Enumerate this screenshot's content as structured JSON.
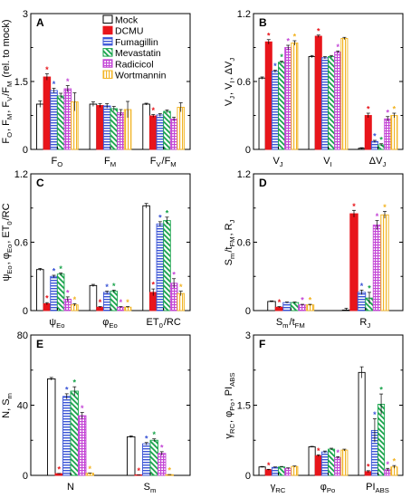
{
  "colors": {
    "Mock": "#000000",
    "DCMU": "#e8151b",
    "Fumagillin": "#3a54d6",
    "Mevastatin": "#17a34a",
    "Radicicol": "#c447d6",
    "Wortmannin": "#f2b424"
  },
  "legend": [
    "Mock",
    "DCMU",
    "Fumagillin",
    "Mevastatin",
    "Radicicol",
    "Wortmannin"
  ],
  "chart_data": [
    {
      "type": "bar",
      "panel_label": "A",
      "ylabel": "FO, FM, FV/FM (rel. to mock)",
      "ylim": [
        0,
        3
      ],
      "yticks": [
        "0",
        "1.5",
        "3"
      ],
      "categories": [
        "FO",
        "FM",
        "FV/FM"
      ],
      "series": [
        {
          "name": "Mock",
          "values": [
            1.0,
            1.0,
            1.0
          ],
          "err": [
            0.07,
            0.05,
            0.02
          ]
        },
        {
          "name": "DCMU",
          "values": [
            1.6,
            0.97,
            0.74
          ],
          "err": [
            0.07,
            0.04,
            0.03
          ],
          "sig": [
            true,
            false,
            true
          ]
        },
        {
          "name": "Fumagillin",
          "values": [
            1.3,
            0.96,
            0.76
          ],
          "err": [
            0.05,
            0.05,
            0.03
          ],
          "sig": [
            true,
            false,
            false
          ]
        },
        {
          "name": "Mevastatin",
          "values": [
            1.18,
            0.9,
            0.84
          ],
          "err": [
            0.06,
            0.05,
            0.03
          ]
        },
        {
          "name": "Radicicol",
          "values": [
            1.34,
            0.81,
            0.67
          ],
          "err": [
            0.07,
            0.07,
            0.04
          ],
          "sig": [
            true,
            false,
            false
          ]
        },
        {
          "name": "Wortmannin",
          "values": [
            1.05,
            0.88,
            0.93
          ],
          "err": [
            0.2,
            0.18,
            0.1
          ]
        }
      ]
    },
    {
      "type": "bar",
      "panel_label": "B",
      "ylabel": "VJ, VI, ΔVJ",
      "ylim": [
        0,
        1.2
      ],
      "yticks": [
        "0",
        "0.6",
        "1.2"
      ],
      "categories": [
        "VJ",
        "VI",
        "ΔVJ"
      ],
      "series": [
        {
          "name": "Mock",
          "values": [
            0.63,
            0.82,
            0.01
          ],
          "err": [
            0.01,
            0.01,
            0.005
          ]
        },
        {
          "name": "DCMU",
          "values": [
            0.95,
            1.0,
            0.3
          ],
          "err": [
            0.02,
            0.01,
            0.02
          ],
          "sig": [
            true,
            true,
            true
          ]
        },
        {
          "name": "Fumagillin",
          "values": [
            0.69,
            0.81,
            0.07
          ],
          "err": [
            0.01,
            0.01,
            0.01
          ],
          "sig": [
            true,
            false,
            true
          ]
        },
        {
          "name": "Mevastatin",
          "values": [
            0.77,
            0.82,
            0.04
          ],
          "err": [
            0.01,
            0.01,
            0.01
          ],
          "sig": [
            true,
            false,
            true
          ]
        },
        {
          "name": "Radicicol",
          "values": [
            0.9,
            0.86,
            0.27
          ],
          "err": [
            0.02,
            0.01,
            0.02
          ],
          "sig": [
            true,
            true,
            true
          ]
        },
        {
          "name": "Wortmannin",
          "values": [
            0.94,
            0.98,
            0.3
          ],
          "err": [
            0.02,
            0.01,
            0.02
          ],
          "sig": [
            true,
            false,
            true
          ]
        }
      ]
    },
    {
      "type": "bar",
      "panel_label": "C",
      "ylabel": "ψEo, φEo, ET0/RC",
      "ylim": [
        0,
        1.2
      ],
      "yticks": [
        "0",
        "0.6",
        "1.2"
      ],
      "categories": [
        "ψEo",
        "φEo",
        "ET0/RC"
      ],
      "series": [
        {
          "name": "Mock",
          "values": [
            0.36,
            0.22,
            0.92
          ],
          "err": [
            0.01,
            0.01,
            0.02
          ]
        },
        {
          "name": "DCMU",
          "values": [
            0.06,
            0.03,
            0.16
          ],
          "err": [
            0.01,
            0.005,
            0.03
          ],
          "sig": [
            true,
            true,
            true
          ]
        },
        {
          "name": "Fumagillin",
          "values": [
            0.3,
            0.16,
            0.76
          ],
          "err": [
            0.01,
            0.01,
            0.02
          ],
          "sig": [
            true,
            true,
            true
          ]
        },
        {
          "name": "Mevastatin",
          "values": [
            0.32,
            0.17,
            0.79
          ],
          "err": [
            0.01,
            0.01,
            0.03
          ],
          "sig": [
            true,
            true,
            true
          ]
        },
        {
          "name": "Radicicol",
          "values": [
            0.1,
            0.03,
            0.24
          ],
          "err": [
            0.02,
            0.005,
            0.04
          ],
          "sig": [
            true,
            true,
            true
          ]
        },
        {
          "name": "Wortmannin",
          "values": [
            0.05,
            0.03,
            0.15
          ],
          "err": [
            0.01,
            0.005,
            0.02
          ],
          "sig": [
            true,
            true,
            true
          ]
        }
      ]
    },
    {
      "type": "bar",
      "panel_label": "D",
      "ylabel": "Sm/tFM, RJ",
      "ylim": [
        0,
        1.2
      ],
      "yticks": [
        "0",
        "0.6",
        "1.2"
      ],
      "categories": [
        "Sm/tFM",
        "RJ"
      ],
      "series": [
        {
          "name": "Mock",
          "values": [
            0.08,
            0.0
          ],
          "err": [
            0.005,
            0.02
          ]
        },
        {
          "name": "DCMU",
          "values": [
            0.03,
            0.85
          ],
          "err": [
            0.005,
            0.03
          ],
          "sig": [
            true,
            true
          ]
        },
        {
          "name": "Fumagillin",
          "values": [
            0.07,
            0.16
          ],
          "err": [
            0.005,
            0.02
          ],
          "sig": [
            false,
            true
          ]
        },
        {
          "name": "Mevastatin",
          "values": [
            0.07,
            0.11
          ],
          "err": [
            0.005,
            0.05
          ],
          "sig": [
            false,
            true
          ]
        },
        {
          "name": "Radicicol",
          "values": [
            0.05,
            0.75
          ],
          "err": [
            0.005,
            0.04
          ],
          "sig": [
            true,
            true
          ]
        },
        {
          "name": "Wortmannin",
          "values": [
            0.05,
            0.84
          ],
          "err": [
            0.005,
            0.03
          ],
          "sig": [
            true,
            true
          ]
        }
      ]
    },
    {
      "type": "bar",
      "panel_label": "E",
      "ylabel": "N, Sm",
      "ylim": [
        0,
        80
      ],
      "yticks": [
        "0",
        "40",
        "80"
      ],
      "categories": [
        "N",
        "Sm"
      ],
      "series": [
        {
          "name": "Mock",
          "values": [
            55,
            22
          ],
          "err": [
            0.8,
            0.5
          ]
        },
        {
          "name": "DCMU",
          "values": [
            1.0,
            0.3
          ],
          "err": [
            0.1,
            0.05
          ],
          "sig": [
            true,
            true
          ]
        },
        {
          "name": "Fumagillin",
          "values": [
            45,
            18
          ],
          "err": [
            1.5,
            0.7
          ],
          "sig": [
            true,
            true
          ]
        },
        {
          "name": "Mevastatin",
          "values": [
            48,
            20
          ],
          "err": [
            2.5,
            0.8
          ],
          "sig": [
            true,
            true
          ]
        },
        {
          "name": "Radicicol",
          "values": [
            34,
            12.5
          ],
          "err": [
            1.8,
            1.0
          ],
          "sig": [
            true,
            true
          ]
        },
        {
          "name": "Wortmannin",
          "values": [
            1.2,
            0.4
          ],
          "err": [
            0.1,
            0.05
          ],
          "sig": [
            true,
            true
          ]
        }
      ]
    },
    {
      "type": "bar",
      "panel_label": "F",
      "ylabel": "γRC, φPo, PIABS",
      "ylim": [
        0,
        3
      ],
      "yticks": [
        "0",
        "1.5",
        "3"
      ],
      "categories": [
        "γRC",
        "φPo",
        "PIABS"
      ],
      "series": [
        {
          "name": "Mock",
          "values": [
            0.18,
            0.61,
            2.2
          ],
          "err": [
            0.01,
            0.01,
            0.12
          ]
        },
        {
          "name": "DCMU",
          "values": [
            0.12,
            0.42,
            0.08
          ],
          "err": [
            0.01,
            0.02,
            0.02
          ],
          "sig": [
            true,
            true,
            true
          ]
        },
        {
          "name": "Fumagillin",
          "values": [
            0.17,
            0.5,
            0.96
          ],
          "err": [
            0.01,
            0.02,
            0.25
          ],
          "sig": [
            false,
            false,
            true
          ]
        },
        {
          "name": "Mevastatin",
          "values": [
            0.18,
            0.56,
            1.52
          ],
          "err": [
            0.01,
            0.02,
            0.22
          ],
          "sig": [
            false,
            false,
            true
          ]
        },
        {
          "name": "Radicicol",
          "values": [
            0.15,
            0.38,
            0.12
          ],
          "err": [
            0.01,
            0.02,
            0.03
          ],
          "sig": [
            false,
            true,
            true
          ]
        },
        {
          "name": "Wortmannin",
          "values": [
            0.19,
            0.54,
            0.18
          ],
          "err": [
            0.01,
            0.02,
            0.03
          ],
          "sig": [
            false,
            false,
            true
          ]
        }
      ]
    }
  ]
}
